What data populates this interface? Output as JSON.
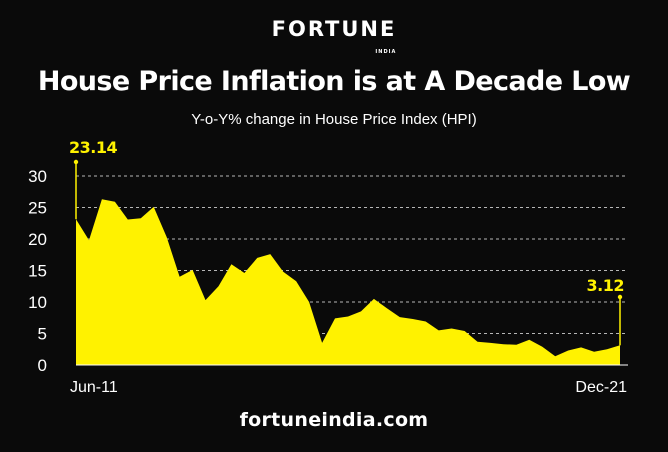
{
  "header": {
    "logo_text": "FORTUNE",
    "logo_sub": "INDIA"
  },
  "footer": {
    "site": "fortuneindia.com"
  },
  "colors": {
    "background": "#0a0a0a",
    "area_fill": "#fff200",
    "grid": "#ffffff",
    "text": "#ffffff"
  },
  "chart_data": {
    "type": "area",
    "title": "House Price Inflation is at A Decade Low",
    "subtitle": "Y-o-Y% change in House Price Index (HPI)",
    "xlabel": "",
    "ylabel": "",
    "ylim": [
      0,
      30
    ],
    "yticks": [
      0,
      5,
      10,
      15,
      20,
      25,
      30
    ],
    "grid": true,
    "x_tick_labels": [
      "Jun-11",
      "Dec-21"
    ],
    "series": [
      {
        "values": [
          23.14,
          19.8,
          26.3,
          25.9,
          23.1,
          23.3,
          25.1,
          20.3,
          14.0,
          15.1,
          10.3,
          12.5,
          16.0,
          14.6,
          17.0,
          17.6,
          14.8,
          13.3,
          10.0,
          3.5,
          7.4,
          7.7,
          8.5,
          10.5,
          9.0,
          7.6,
          7.3,
          6.9,
          5.5,
          5.8,
          5.4,
          3.7,
          3.5,
          3.3,
          3.2,
          4.0,
          2.9,
          1.4,
          2.3,
          2.8,
          2.1,
          2.5,
          3.12
        ]
      }
    ],
    "annotations": [
      {
        "label": "23.14",
        "value": 23.14,
        "at": "start"
      },
      {
        "label": "3.12",
        "value": 3.12,
        "at": "end"
      }
    ]
  }
}
